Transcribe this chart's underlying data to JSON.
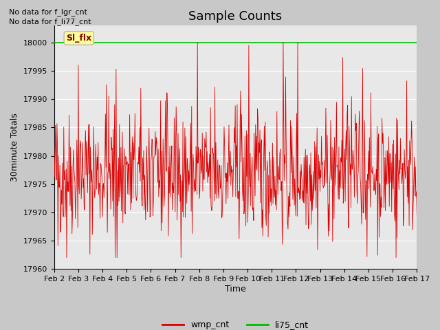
{
  "title": "Sample Counts",
  "xlabel": "Time",
  "ylabel": "30minute Totals",
  "ylim": [
    17960,
    18003
  ],
  "yticks": [
    17960,
    17965,
    17970,
    17975,
    17980,
    17985,
    17990,
    17995,
    18000
  ],
  "xtick_labels": [
    "Feb 2",
    "Feb 3",
    "Feb 4",
    "Feb 5",
    "Feb 6",
    "Feb 7",
    "Feb 8",
    "Feb 9",
    "Feb 10",
    "Feb 11",
    "Feb 12",
    "Feb 13",
    "Feb 14",
    "Feb 15",
    "Feb 16",
    "Feb 17"
  ],
  "wmp_cnt_color": "#dd0000",
  "li75_cnt_color": "#00bb00",
  "fig_bg_color": "#c8c8c8",
  "plot_bg_color": "#e8e8e8",
  "annotation1": "No data for f_lgr_cnt",
  "annotation2": "No data for f_li77_cnt",
  "box_label": "Sl_flx",
  "box_color": "#ffff99",
  "box_text_color": "#880000",
  "title_fontsize": 13,
  "axis_label_fontsize": 9,
  "tick_fontsize": 8,
  "legend_fontsize": 9,
  "annotation_fontsize": 8,
  "li75_value": 18000,
  "n_points": 750,
  "seed": 42,
  "base": 17977,
  "noise_std": 5.5
}
